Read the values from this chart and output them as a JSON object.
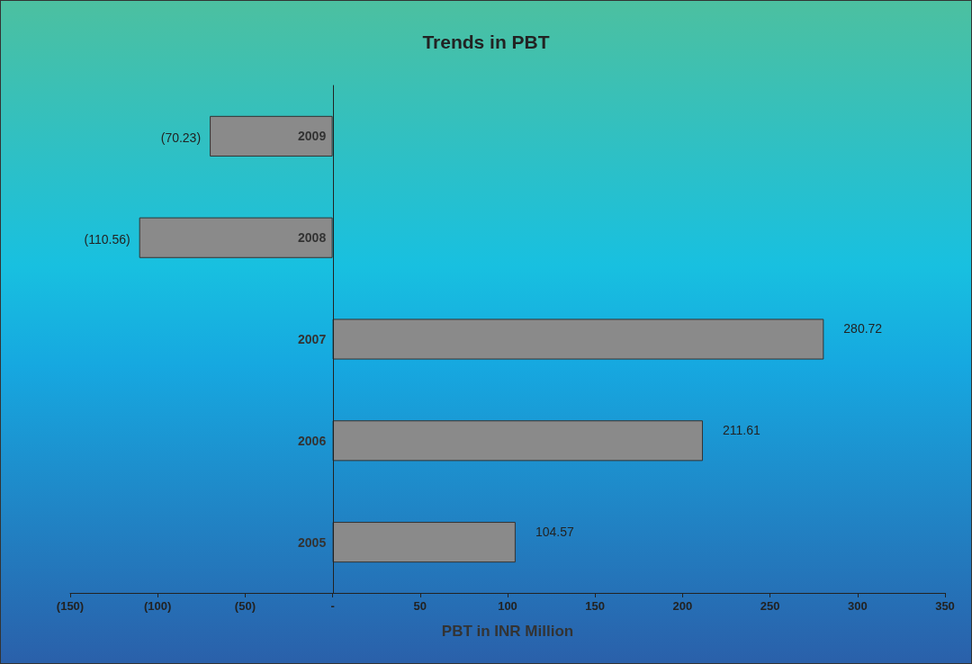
{
  "chart_data": {
    "type": "bar",
    "orientation": "horizontal",
    "title": "Trends in PBT",
    "xlabel": "PBT in INR Million",
    "categories": [
      "2009",
      "2008",
      "2007",
      "2006",
      "2005"
    ],
    "values": [
      -70.23,
      -110.56,
      280.72,
      211.61,
      104.57
    ],
    "value_labels": [
      "(70.23)",
      "(110.56)",
      "280.72",
      "211.61",
      "104.57"
    ],
    "color": "#8a8a8a",
    "xlim": [
      -150,
      350
    ],
    "xticks": [
      {
        "value": -150,
        "label": "(150)"
      },
      {
        "value": -100,
        "label": "(100)"
      },
      {
        "value": -50,
        "label": "(50)"
      },
      {
        "value": 0,
        "label": "-"
      },
      50,
      100,
      150,
      200,
      250,
      300,
      350
    ],
    "grid": false
  }
}
